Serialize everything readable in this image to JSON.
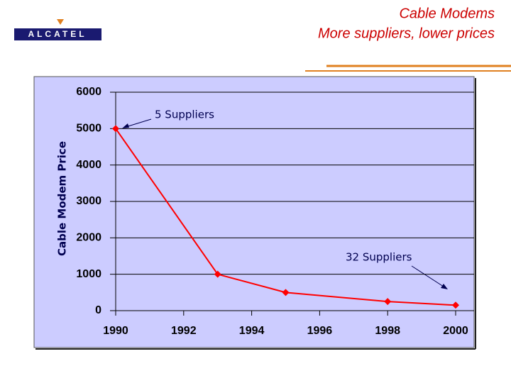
{
  "logo": "ALCATEL",
  "chart_data": {
    "type": "line",
    "title": "Cable Modems",
    "subtitle": "More suppliers, lower prices",
    "ylabel": "Cable Modem Price",
    "annotations": [
      "5 Suppliers",
      "32 Suppliers"
    ],
    "x": [
      1990,
      1993,
      1995,
      1998,
      2000
    ],
    "series": [
      {
        "color": "#ff0000",
        "values": [
          5000,
          1000,
          500,
          250,
          150
        ]
      }
    ],
    "xlim": [
      1990,
      2000
    ],
    "xticks": [
      1990,
      1992,
      1994,
      1996,
      1998,
      2000
    ],
    "ylim": [
      0,
      6000
    ],
    "yticks": [
      0,
      1000,
      2000,
      3000,
      4000,
      5000,
      6000
    ],
    "grid": true,
    "background": "#ccccff"
  }
}
